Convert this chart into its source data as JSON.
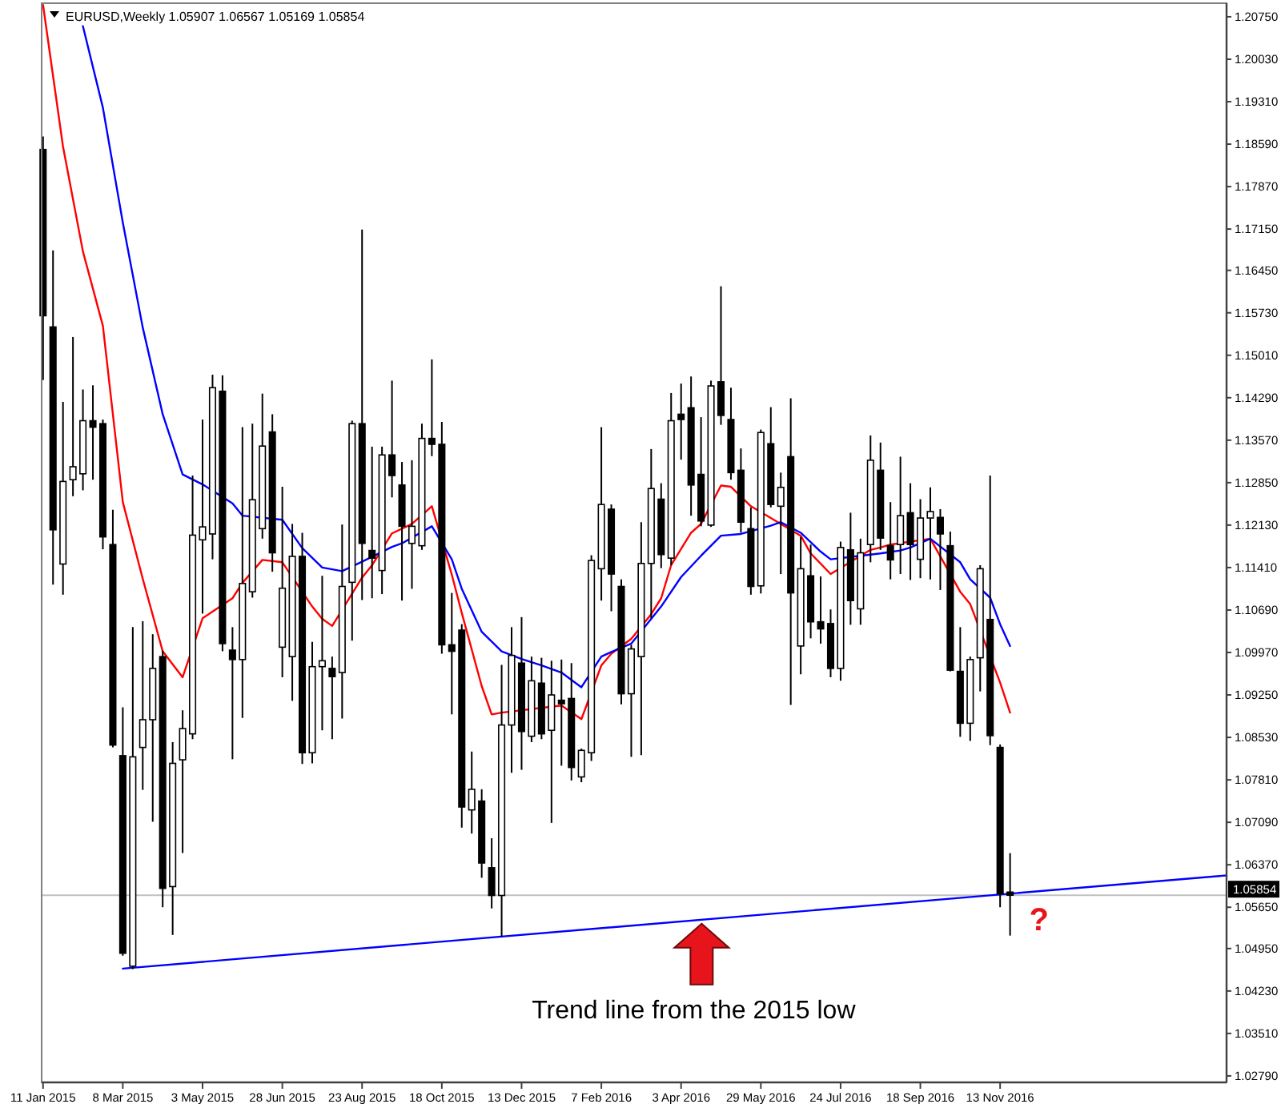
{
  "chart_data": {
    "type": "candlestick",
    "title": "EURUSD,Weekly 1.05907 1.06567 1.05169 1.05854",
    "x": [
      "2015-01-11",
      "2015-01-18",
      "2015-01-25",
      "2015-02-01",
      "2015-02-08",
      "2015-02-15",
      "2015-02-22",
      "2015-03-01",
      "2015-03-08",
      "2015-03-15",
      "2015-03-22",
      "2015-03-29",
      "2015-04-05",
      "2015-04-12",
      "2015-04-19",
      "2015-04-26",
      "2015-05-03",
      "2015-05-10",
      "2015-05-17",
      "2015-05-24",
      "2015-05-31",
      "2015-06-07",
      "2015-06-14",
      "2015-06-21",
      "2015-06-28",
      "2015-07-05",
      "2015-07-12",
      "2015-07-19",
      "2015-07-26",
      "2015-08-02",
      "2015-08-09",
      "2015-08-16",
      "2015-08-23",
      "2015-08-30",
      "2015-09-06",
      "2015-09-13",
      "2015-09-20",
      "2015-09-27",
      "2015-10-04",
      "2015-10-11",
      "2015-10-18",
      "2015-10-25",
      "2015-11-01",
      "2015-11-08",
      "2015-11-15",
      "2015-11-22",
      "2015-11-29",
      "2015-12-06",
      "2015-12-13",
      "2015-12-20",
      "2015-12-27",
      "2016-01-03",
      "2016-01-10",
      "2016-01-17",
      "2016-01-24",
      "2016-01-31",
      "2016-02-07",
      "2016-02-14",
      "2016-02-21",
      "2016-02-28",
      "2016-03-06",
      "2016-03-13",
      "2016-03-20",
      "2016-03-27",
      "2016-04-03",
      "2016-04-10",
      "2016-04-17",
      "2016-04-24",
      "2016-05-01",
      "2016-05-08",
      "2016-05-15",
      "2016-05-22",
      "2016-05-29",
      "2016-06-05",
      "2016-06-12",
      "2016-06-19",
      "2016-06-26",
      "2016-07-03",
      "2016-07-10",
      "2016-07-17",
      "2016-07-24",
      "2016-07-31",
      "2016-08-07",
      "2016-08-14",
      "2016-08-21",
      "2016-08-28",
      "2016-09-04",
      "2016-09-11",
      "2016-09-18",
      "2016-09-25",
      "2016-10-02",
      "2016-10-09",
      "2016-10-16",
      "2016-10-23",
      "2016-10-30",
      "2016-11-06",
      "2016-11-13",
      "2016-11-20"
    ],
    "ohlc": [
      [
        1.185,
        1.1872,
        1.1459,
        1.1568
      ],
      [
        1.1549,
        1.1679,
        1.1112,
        1.1205
      ],
      [
        1.1147,
        1.1422,
        1.1095,
        1.1287
      ],
      [
        1.129,
        1.1532,
        1.1262,
        1.1312
      ],
      [
        1.13,
        1.1443,
        1.1272,
        1.139
      ],
      [
        1.139,
        1.145,
        1.129,
        1.1379
      ],
      [
        1.1385,
        1.1392,
        1.1172,
        1.1193
      ],
      [
        1.118,
        1.1239,
        1.0836,
        1.084
      ],
      [
        1.0822,
        1.0904,
        1.0483,
        1.0487
      ],
      [
        1.0465,
        1.104,
        1.046,
        1.082
      ],
      [
        1.0836,
        1.105,
        1.0764,
        1.0883
      ],
      [
        1.0883,
        1.1028,
        1.071,
        1.097
      ],
      [
        1.099,
        1.1,
        1.0565,
        1.0597
      ],
      [
        1.06,
        1.0845,
        1.0518,
        1.0809
      ],
      [
        1.0815,
        1.0899,
        1.0657,
        1.0868
      ],
      [
        1.0859,
        1.1297,
        1.085,
        1.1196
      ],
      [
        1.1188,
        1.1392,
        1.1063,
        1.121
      ],
      [
        1.1198,
        1.1468,
        1.1155,
        1.1446
      ],
      [
        1.144,
        1.1467,
        1.0999,
        1.1012
      ],
      [
        1.1001,
        1.104,
        1.0816,
        1.0985
      ],
      [
        1.0985,
        1.1379,
        1.0886,
        1.1114
      ],
      [
        1.11,
        1.1385,
        1.109,
        1.1256
      ],
      [
        1.1207,
        1.1436,
        1.119,
        1.1347
      ],
      [
        1.1371,
        1.1401,
        1.1134,
        1.1166
      ],
      [
        1.1006,
        1.1278,
        1.0955,
        1.1106
      ],
      [
        1.099,
        1.1215,
        1.0915,
        1.116
      ],
      [
        1.116,
        1.12,
        1.0808,
        1.0827
      ],
      [
        1.0827,
        1.1015,
        1.0809,
        1.0973
      ],
      [
        1.0973,
        1.1127,
        1.0865,
        1.0983
      ],
      [
        1.097,
        1.099,
        1.085,
        1.0956
      ],
      [
        1.0963,
        1.1214,
        1.0885,
        1.1109
      ],
      [
        1.1116,
        1.139,
        1.1017,
        1.1385
      ],
      [
        1.1385,
        1.1714,
        1.1086,
        1.1182
      ],
      [
        1.117,
        1.1346,
        1.1089,
        1.1157
      ],
      [
        1.1136,
        1.1346,
        1.1096,
        1.1332
      ],
      [
        1.1332,
        1.1458,
        1.126,
        1.1297
      ],
      [
        1.1281,
        1.132,
        1.1085,
        1.1211
      ],
      [
        1.1182,
        1.1323,
        1.1105,
        1.1211
      ],
      [
        1.1178,
        1.1385,
        1.1171,
        1.136
      ],
      [
        1.136,
        1.1494,
        1.133,
        1.135
      ],
      [
        1.135,
        1.1388,
        1.0995,
        1.101
      ],
      [
        1.101,
        1.1098,
        1.0892,
        1.0999
      ],
      [
        1.1035,
        1.1045,
        1.07,
        1.0735
      ],
      [
        1.073,
        1.0829,
        1.069,
        1.0765
      ],
      [
        1.0745,
        1.0765,
        1.0615,
        1.064
      ],
      [
        1.0632,
        1.0682,
        1.0563,
        1.0585
      ],
      [
        1.0585,
        1.0976,
        1.0515,
        1.0874
      ],
      [
        1.0874,
        1.104,
        1.0793,
        1.0992
      ],
      [
        1.0979,
        1.1057,
        1.0798,
        1.0863
      ],
      [
        1.0855,
        1.099,
        1.0845,
        1.0949
      ],
      [
        1.0945,
        1.0988,
        1.085,
        1.0859
      ],
      [
        1.0865,
        1.0983,
        1.0708,
        1.0925
      ],
      [
        1.0916,
        1.0985,
        1.0805,
        1.091
      ],
      [
        1.0919,
        1.0979,
        1.078,
        1.0802
      ],
      [
        1.0786,
        1.0834,
        1.0777,
        1.0831
      ],
      [
        1.0827,
        1.1162,
        1.0813,
        1.1153
      ],
      [
        1.1139,
        1.1379,
        1.1085,
        1.1248
      ],
      [
        1.124,
        1.1248,
        1.1067,
        1.113
      ],
      [
        1.1109,
        1.1121,
        1.0909,
        1.0927
      ],
      [
        1.0927,
        1.101,
        1.082,
        1.1003
      ],
      [
        1.099,
        1.1218,
        1.0823,
        1.1148
      ],
      [
        1.1148,
        1.1342,
        1.1055,
        1.1275
      ],
      [
        1.1257,
        1.1284,
        1.114,
        1.1163
      ],
      [
        1.1157,
        1.1437,
        1.1145,
        1.139
      ],
      [
        1.1401,
        1.1453,
        1.1324,
        1.1392
      ],
      [
        1.1412,
        1.1465,
        1.1229,
        1.1281
      ],
      [
        1.1299,
        1.1396,
        1.1211,
        1.122
      ],
      [
        1.1213,
        1.1458,
        1.121,
        1.1449
      ],
      [
        1.1456,
        1.1618,
        1.1383,
        1.1399
      ],
      [
        1.1392,
        1.1446,
        1.129,
        1.1302
      ],
      [
        1.1306,
        1.1343,
        1.12,
        1.1218
      ],
      [
        1.1207,
        1.1243,
        1.1095,
        1.1109
      ],
      [
        1.111,
        1.1375,
        1.1097,
        1.137
      ],
      [
        1.1351,
        1.1413,
        1.1243,
        1.1248
      ],
      [
        1.1245,
        1.1302,
        1.113,
        1.1277
      ],
      [
        1.1329,
        1.1428,
        1.0908,
        1.1098
      ],
      [
        1.1008,
        1.1193,
        1.096,
        1.1139
      ],
      [
        1.1127,
        1.118,
        1.1021,
        1.1049
      ],
      [
        1.1049,
        1.1126,
        1.1012,
        1.1037
      ],
      [
        1.1046,
        1.107,
        1.0955,
        1.097
      ],
      [
        1.097,
        1.1185,
        1.0949,
        1.1175
      ],
      [
        1.1171,
        1.1234,
        1.1044,
        1.1085
      ],
      [
        1.1071,
        1.119,
        1.1044,
        1.1166
      ],
      [
        1.118,
        1.1365,
        1.115,
        1.1323
      ],
      [
        1.1306,
        1.1353,
        1.1171,
        1.1191
      ],
      [
        1.1178,
        1.1252,
        1.1121,
        1.1154
      ],
      [
        1.118,
        1.1329,
        1.113,
        1.1229
      ],
      [
        1.1234,
        1.1284,
        1.112,
        1.118
      ],
      [
        1.1155,
        1.1257,
        1.1123,
        1.1225
      ],
      [
        1.1225,
        1.1277,
        1.1121,
        1.1236
      ],
      [
        1.1226,
        1.124,
        1.1103,
        1.1198
      ],
      [
        1.1178,
        1.1202,
        1.0965,
        1.0967
      ],
      [
        1.0965,
        1.104,
        1.0854,
        1.0877
      ],
      [
        1.0877,
        1.099,
        1.0847,
        1.0985
      ],
      [
        1.0988,
        1.1145,
        1.0931,
        1.1139
      ],
      [
        1.1053,
        1.1297,
        1.084,
        1.0856
      ],
      [
        1.0836,
        1.0841,
        1.0565,
        1.0588
      ],
      [
        1.05907,
        1.06567,
        1.05169,
        1.05854
      ]
    ],
    "series": [
      {
        "type": "line",
        "color": "#ff0000",
        "x": [
          "2015-01-11",
          "2015-01-25",
          "2015-02-08",
          "2015-02-22",
          "2015-03-08",
          "2015-03-22",
          "2015-04-05",
          "2015-04-19",
          "2015-05-03",
          "2015-05-24",
          "2015-05-31",
          "2015-06-14",
          "2015-06-28",
          "2015-07-19",
          "2015-07-26",
          "2015-08-02",
          "2015-08-23",
          "2015-08-30",
          "2015-09-13",
          "2015-09-27",
          "2015-10-11",
          "2015-10-25",
          "2015-11-01",
          "2015-11-15",
          "2015-11-22",
          "2015-11-29",
          "2016-01-10",
          "2016-01-24",
          "2016-02-07",
          "2016-02-14",
          "2016-02-28",
          "2016-03-13",
          "2016-03-20",
          "2016-03-27",
          "2016-04-10",
          "2016-04-17",
          "2016-05-01",
          "2016-05-08",
          "2016-05-22",
          "2016-06-26",
          "2016-07-03",
          "2016-07-17",
          "2016-08-14",
          "2016-08-21",
          "2016-08-28",
          "2016-09-25",
          "2016-10-16",
          "2016-10-23",
          "2016-11-13",
          "2016-11-20"
        ],
        "values": [
          1.2095,
          1.1855,
          1.1677,
          1.1551,
          1.1252,
          1.1122,
          1.0999,
          1.0955,
          1.1055,
          1.1089,
          1.1115,
          1.1154,
          1.115,
          1.1075,
          1.1054,
          1.1042,
          1.1124,
          1.1145,
          1.1199,
          1.1215,
          1.1245,
          1.1129,
          1.1064,
          1.094,
          1.0892,
          1.0895,
          1.0907,
          1.0884,
          1.0975,
          1.0995,
          1.102,
          1.1062,
          1.1089,
          1.1145,
          1.12,
          1.1215,
          1.128,
          1.1278,
          1.1245,
          1.1195,
          1.1165,
          1.113,
          1.1171,
          1.1175,
          1.118,
          1.119,
          1.11,
          1.1079,
          1.0946,
          1.0895
        ]
      },
      {
        "type": "line",
        "color": "#0000ff",
        "x": [
          "2015-02-08",
          "2015-02-22",
          "2015-03-08",
          "2015-03-22",
          "2015-04-05",
          "2015-04-19",
          "2015-05-03",
          "2015-05-24",
          "2015-05-31",
          "2015-06-28",
          "2015-07-12",
          "2015-07-26",
          "2015-08-09",
          "2015-08-23",
          "2015-09-13",
          "2015-09-20",
          "2015-10-11",
          "2015-10-25",
          "2015-11-01",
          "2015-11-15",
          "2015-11-29",
          "2015-12-13",
          "2015-12-27",
          "2016-01-10",
          "2016-01-24",
          "2016-02-07",
          "2016-02-14",
          "2016-02-28",
          "2016-03-20",
          "2016-04-03",
          "2016-04-17",
          "2016-05-01",
          "2016-05-15",
          "2016-06-05",
          "2016-06-12",
          "2016-06-26",
          "2016-07-10",
          "2016-07-17",
          "2016-08-14",
          "2016-08-21",
          "2016-09-04",
          "2016-09-11",
          "2016-09-25",
          "2016-10-16",
          "2016-10-23",
          "2016-11-06",
          "2016-11-13",
          "2016-11-20"
        ],
        "values": [
          1.2059,
          1.1921,
          1.1726,
          1.1548,
          1.1401,
          1.1299,
          1.1282,
          1.125,
          1.1229,
          1.1222,
          1.1174,
          1.1141,
          1.1135,
          1.1151,
          1.1176,
          1.1182,
          1.1211,
          1.1155,
          1.1105,
          1.1032,
          1.0999,
          1.0986,
          1.0975,
          1.0963,
          1.0938,
          1.099,
          1.0998,
          1.1012,
          1.1075,
          1.1125,
          1.1161,
          1.1195,
          1.1198,
          1.1212,
          1.1218,
          1.12,
          1.1168,
          1.1155,
          1.1163,
          1.1165,
          1.117,
          1.1175,
          1.119,
          1.115,
          1.1121,
          1.109,
          1.1045,
          1.1008
        ]
      },
      {
        "type": "line",
        "color": "#0000ff",
        "x": [
          "2015-03-08",
          "2017-04-21"
        ],
        "values": [
          1.0461,
          1.0619
        ]
      }
    ],
    "xlim": [
      "2015-01-10",
      "2017-04-21"
    ],
    "xticks": [
      {
        "value": "2015-01-11",
        "label": "11 Jan 2015"
      },
      {
        "value": "2015-03-08",
        "label": "8 Mar 2015"
      },
      {
        "value": "2015-05-03",
        "label": "3 May 2015"
      },
      {
        "value": "2015-06-28",
        "label": "28 Jun 2015"
      },
      {
        "value": "2015-08-23",
        "label": "23 Aug 2015"
      },
      {
        "value": "2015-10-18",
        "label": "18 Oct 2015"
      },
      {
        "value": "2015-12-13",
        "label": "13 Dec 2015"
      },
      {
        "value": "2016-02-07",
        "label": "7 Feb 2016"
      },
      {
        "value": "2016-04-03",
        "label": "3 Apr 2016"
      },
      {
        "value": "2016-05-29",
        "label": "29 May 2016"
      },
      {
        "value": "2016-07-24",
        "label": "24 Jul 2016"
      },
      {
        "value": "2016-09-18",
        "label": "18 Sep 2016"
      },
      {
        "value": "2016-11-13",
        "label": "13 Nov 2016"
      }
    ],
    "ylim": [
      1.0268,
      1.2098
    ],
    "yticks": [
      {
        "value": 1.2075,
        "label": "1.20750"
      },
      {
        "value": 1.2003,
        "label": "1.20030"
      },
      {
        "value": 1.1931,
        "label": "1.19310"
      },
      {
        "value": 1.1859,
        "label": "1.18590"
      },
      {
        "value": 1.1787,
        "label": "1.17870"
      },
      {
        "value": 1.1715,
        "label": "1.17150"
      },
      {
        "value": 1.1645,
        "label": "1.16450"
      },
      {
        "value": 1.1573,
        "label": "1.15730"
      },
      {
        "value": 1.1501,
        "label": "1.15010"
      },
      {
        "value": 1.1429,
        "label": "1.14290"
      },
      {
        "value": 1.1357,
        "label": "1.13570"
      },
      {
        "value": 1.1285,
        "label": "1.12850"
      },
      {
        "value": 1.1213,
        "label": "1.12130"
      },
      {
        "value": 1.1141,
        "label": "1.11410"
      },
      {
        "value": 1.1069,
        "label": "1.10690"
      },
      {
        "value": 1.0997,
        "label": "1.09970"
      },
      {
        "value": 1.0925,
        "label": "1.09250"
      },
      {
        "value": 1.0853,
        "label": "1.08530"
      },
      {
        "value": 1.0781,
        "label": "1.07810"
      },
      {
        "value": 1.0709,
        "label": "1.07090"
      },
      {
        "value": 1.0637,
        "label": "1.06370"
      },
      {
        "value": 1.0565,
        "label": "1.05650"
      },
      {
        "value": 1.0495,
        "label": "1.04950"
      },
      {
        "value": 1.0423,
        "label": "1.04230"
      },
      {
        "value": 1.0351,
        "label": "1.03510"
      },
      {
        "value": 1.0279,
        "label": "1.02790"
      }
    ],
    "ref_lines": [
      {
        "axis": "y",
        "value": 1.05854,
        "label": "1.05854",
        "color": "#c0c0c0"
      }
    ],
    "annotations": [
      "Trend line from the 2015 low",
      "?"
    ]
  }
}
